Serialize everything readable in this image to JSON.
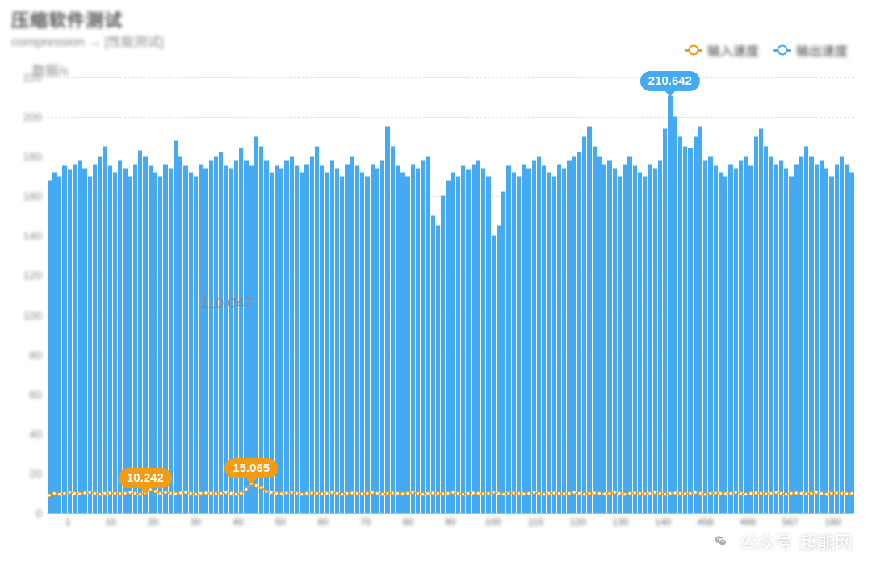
{
  "title": "压缩软件测试",
  "subtitle": "compression → [性能测试]",
  "ylabel_text": "数据/s",
  "legend": {
    "orange": {
      "label": "输入速度",
      "color": "#f39c12"
    },
    "blue": {
      "label": "输出速度",
      "color": "#45aaf2"
    }
  },
  "chart": {
    "type": "bar+line",
    "background_color": "#ffffff",
    "grid_color": "#e0e0e0",
    "axis_color": "#bbbbbb",
    "ylim": [
      0,
      220
    ],
    "yticks": [
      0,
      20,
      40,
      60,
      80,
      100,
      120,
      140,
      160,
      180,
      200,
      220
    ],
    "ytick_labels": [
      "0",
      "20",
      "40",
      "60",
      "80",
      "100",
      "120",
      "140",
      "160",
      "180",
      "200",
      "220"
    ],
    "n_points": 160,
    "blue_series_color": "#45aaf2",
    "orange_series_color": "#f39c12",
    "blue_values": [
      168,
      172,
      170,
      175,
      173,
      176,
      178,
      174,
      170,
      176,
      180,
      185,
      175,
      172,
      178,
      174,
      170,
      176,
      183,
      180,
      175,
      172,
      170,
      176,
      174,
      188,
      180,
      175,
      172,
      170,
      176,
      174,
      178,
      180,
      182,
      175,
      174,
      178,
      184,
      178,
      175,
      190,
      185,
      178,
      172,
      175,
      174,
      178,
      180,
      175,
      172,
      176,
      180,
      185,
      175,
      172,
      178,
      174,
      170,
      176,
      180,
      175,
      172,
      170,
      176,
      174,
      178,
      195,
      185,
      175,
      172,
      170,
      176,
      174,
      178,
      180,
      150,
      145,
      160,
      168,
      172,
      170,
      175,
      173,
      176,
      178,
      174,
      170,
      140,
      145,
      162,
      175,
      172,
      170,
      176,
      174,
      178,
      180,
      175,
      172,
      170,
      176,
      174,
      178,
      180,
      182,
      190,
      195,
      185,
      180,
      176,
      178,
      174,
      170,
      176,
      180,
      175,
      172,
      170,
      176,
      174,
      178,
      194,
      210.642,
      200,
      190,
      185,
      184,
      190,
      195,
      178,
      180,
      175,
      172,
      170,
      176,
      174,
      178,
      180,
      175,
      190,
      194,
      185,
      180,
      176,
      178,
      174,
      170,
      176,
      180,
      185,
      180,
      176,
      178,
      174,
      170,
      176,
      180,
      176,
      172
    ],
    "orange_values": [
      9,
      10,
      9.5,
      10,
      10.5,
      10,
      9.8,
      10.2,
      10.5,
      10,
      9.5,
      10,
      10.2,
      10,
      9.8,
      10,
      10.5,
      10,
      9.5,
      10.242,
      12,
      11,
      10,
      10.5,
      10,
      9.8,
      10.2,
      10.5,
      10,
      9.5,
      10,
      10.2,
      10,
      9.8,
      10,
      10.5,
      10,
      9.5,
      10,
      12,
      15.065,
      14,
      13,
      11,
      10.5,
      10,
      9.8,
      10.2,
      10.5,
      10,
      9.5,
      10,
      10.2,
      10,
      9.8,
      10,
      10.5,
      10,
      9.5,
      10,
      10.2,
      10,
      9.8,
      10,
      10.5,
      10,
      9.5,
      10,
      10.2,
      10,
      9.8,
      10,
      10.5,
      10,
      9.5,
      10,
      10.2,
      10,
      9.8,
      10,
      10.5,
      10,
      9.5,
      10,
      10.2,
      10,
      9.8,
      10,
      10.5,
      10,
      9.5,
      10,
      10.2,
      10,
      9.8,
      10,
      10.5,
      10,
      9.5,
      10,
      10.2,
      10,
      9.8,
      10,
      10.5,
      10,
      9.5,
      10,
      10.2,
      10,
      9.8,
      10,
      10.5,
      10,
      9.5,
      10,
      10.2,
      10,
      9.8,
      10,
      10.5,
      10,
      9.5,
      10,
      10.2,
      10,
      9.8,
      10,
      10.5,
      10,
      9.5,
      10,
      10.2,
      10,
      9.8,
      10,
      10.5,
      10,
      9.5,
      10,
      10.2,
      10,
      9.8,
      10,
      10.5,
      10,
      9.5,
      10,
      10.2,
      10,
      9.8,
      10,
      10.5,
      10,
      9.5,
      10,
      10.2,
      10,
      9.8,
      10
    ],
    "xaxis_labels": [
      "1",
      "10",
      "20",
      "30",
      "40",
      "50",
      "60",
      "70",
      "80",
      "90",
      "100",
      "110",
      "120",
      "130",
      "140",
      "458",
      "466",
      "567",
      "160"
    ],
    "callouts": [
      {
        "series": "blue",
        "value": "210.642",
        "x_index": 123,
        "y_value": 210.642
      },
      {
        "series": "orange",
        "value": "10.242",
        "x_index": 19,
        "y_value": 10.242
      },
      {
        "series": "orange",
        "value": "15.065",
        "x_index": 40,
        "y_value": 15.065
      }
    ],
    "plain_annotation": {
      "value": "110.047",
      "x_index": 30,
      "y_value": 110
    }
  },
  "watermark": {
    "icon_bg": "#ffffff",
    "icon_color": "#9aa0a6",
    "label1": "公众号",
    "label2": "超能网"
  }
}
